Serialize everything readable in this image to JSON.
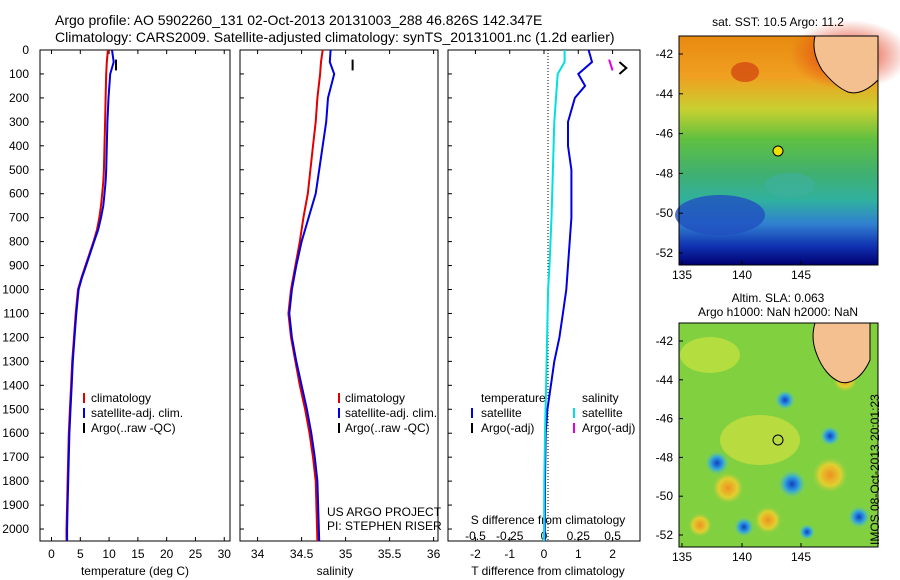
{
  "header": {
    "line1": "Argo profile: AO 5902260_131 02-Oct-2013 20131003_288 46.826S 142.347E",
    "line2": "Climatology: CARS2009. Satellite-adjusted climatology: synTS_20131001.nc (1.2d earlier)"
  },
  "colors": {
    "climatology": "#e00000",
    "satellite": "#0000e0",
    "argo": "#000000",
    "sal_satellite": "#00e0e0",
    "sal_argo": "#e000e0",
    "dotted_zero": "#000000"
  },
  "depth_axis": {
    "ticks": [
      "0",
      "100",
      "200",
      "300",
      "400",
      "500",
      "600",
      "700",
      "800",
      "900",
      "1000",
      "1100",
      "1200",
      "1300",
      "1400",
      "1500",
      "1600",
      "1700",
      "1800",
      "1900",
      "2000"
    ],
    "range": [
      0,
      2050
    ]
  },
  "temperature_panel": {
    "xlabel": "temperature (deg C)",
    "xticks": [
      "0",
      "5",
      "10",
      "15",
      "20",
      "25",
      "30"
    ],
    "xlim": [
      -2,
      31
    ],
    "legend": [
      "climatology",
      "satellite-adj. clim.",
      "Argo(..raw -QC)"
    ]
  },
  "salinity_panel": {
    "xlabel": "salinity",
    "xticks": [
      "34",
      "34.5",
      "35",
      "35.5",
      "36"
    ],
    "xlim": [
      33.8,
      36.05
    ],
    "legend": [
      "climatology",
      "satellite-adj. clim.",
      "Argo(..raw -QC)"
    ],
    "credit_line1": "US ARGO PROJECT",
    "credit_line2": "PI: STEPHEN RISER"
  },
  "difference_panel": {
    "xlabel": "T difference from climatology",
    "top_xlabel": "S difference from climatology",
    "xticks": [
      "-2",
      "-1",
      "0",
      "1",
      "2"
    ],
    "xlim": [
      -2.8,
      2.8
    ],
    "top_xticks": [
      "-0.5",
      "-0.25",
      "0",
      "0.25",
      "0.5"
    ],
    "legend_temp_title": "temperature",
    "legend_temp_items": [
      "satellite",
      "Argo(-adj)"
    ],
    "legend_sal_title": "salinity",
    "legend_sal_items": [
      "satellite",
      "Argo(-adj)"
    ]
  },
  "map_sst": {
    "title": "sat. SST: 10.5 Argo: 11.2",
    "yticks": [
      "-42",
      "-44",
      "-46",
      "-48",
      "-50",
      "-52"
    ],
    "xticks": [
      "135",
      "140",
      "145"
    ]
  },
  "map_sla": {
    "title1": "Altim. SLA: 0.063",
    "title2": "Argo h1000: NaN h2000: NaN",
    "yticks": [
      "-42",
      "-44",
      "-46",
      "-48",
      "-50",
      "-52"
    ],
    "xticks": [
      "135",
      "140",
      "145"
    ]
  },
  "stamp": "IMOS 08-Oct-2013 20:01:23",
  "chart_data": [
    {
      "type": "line",
      "panel": "temperature",
      "xlabel": "temperature (deg C)",
      "ylabel": "",
      "xlim": [
        -2,
        31
      ],
      "ylim": [
        2050,
        0
      ],
      "series": [
        {
          "name": "climatology",
          "x": [
            9.8,
            9.6,
            9.5,
            9.4,
            9.3,
            9.2,
            9.1,
            9.0,
            8.8,
            8.6,
            8.3,
            7.9,
            7.3,
            6.6,
            5.9,
            5.2,
            4.6,
            4.2,
            3.9,
            3.6,
            3.4,
            3.2,
            3.0,
            2.9,
            2.8,
            2.7,
            2.6,
            2.6
          ],
          "y": [
            0,
            50,
            100,
            200,
            300,
            400,
            500,
            550,
            600,
            650,
            700,
            750,
            800,
            850,
            900,
            950,
            1000,
            1100,
            1200,
            1300,
            1400,
            1500,
            1600,
            1700,
            1800,
            1900,
            2000,
            2050
          ]
        },
        {
          "name": "satellite-adj. clim.",
          "x": [
            10.5,
            10.8,
            10.2,
            9.9,
            9.7,
            9.6,
            9.5,
            9.4,
            9.2,
            9.0,
            8.6,
            8.1,
            7.4,
            6.7,
            6.0,
            5.3,
            4.7,
            4.3,
            4.0,
            3.7,
            3.5,
            3.3,
            3.1,
            3.0,
            2.9,
            2.8,
            2.7,
            2.7
          ],
          "y": [
            0,
            50,
            100,
            200,
            300,
            400,
            500,
            550,
            600,
            650,
            700,
            750,
            800,
            850,
            900,
            950,
            1000,
            1100,
            1200,
            1300,
            1400,
            1500,
            1600,
            1700,
            1800,
            1900,
            2000,
            2050
          ]
        },
        {
          "name": "Argo(..raw -QC)",
          "x": [
            11.2,
            11.2
          ],
          "y": [
            40,
            85
          ]
        }
      ]
    },
    {
      "type": "line",
      "panel": "salinity",
      "xlabel": "salinity",
      "ylabel": "",
      "xlim": [
        33.8,
        36.05
      ],
      "ylim": [
        2050,
        0
      ],
      "series": [
        {
          "name": "climatology",
          "x": [
            34.74,
            34.72,
            34.71,
            34.68,
            34.66,
            34.63,
            34.6,
            34.57,
            34.52,
            34.48,
            34.43,
            34.38,
            34.35,
            34.38,
            34.43,
            34.48,
            34.54,
            34.59,
            34.63,
            34.66,
            34.68
          ],
          "y": [
            0,
            50,
            100,
            200,
            300,
            400,
            500,
            600,
            700,
            800,
            900,
            1000,
            1100,
            1200,
            1300,
            1400,
            1500,
            1600,
            1700,
            1800,
            2050
          ]
        },
        {
          "name": "satellite-adj. clim.",
          "x": [
            34.83,
            34.82,
            34.87,
            34.8,
            34.78,
            34.74,
            34.7,
            34.66,
            34.58,
            34.5,
            34.44,
            34.39,
            34.36,
            34.39,
            34.44,
            34.5,
            34.56,
            34.61,
            34.65,
            34.68,
            34.7
          ],
          "y": [
            0,
            50,
            100,
            200,
            300,
            400,
            500,
            600,
            700,
            800,
            900,
            1000,
            1100,
            1200,
            1300,
            1400,
            1500,
            1600,
            1700,
            1800,
            2050
          ]
        },
        {
          "name": "Argo(..raw -QC)",
          "x": [
            35.08,
            35.08
          ],
          "y": [
            40,
            85
          ]
        }
      ]
    },
    {
      "type": "line",
      "panel": "difference",
      "xlabel": "T difference from climatology",
      "top_xlabel": "S difference from climatology",
      "xlim": [
        -2.8,
        2.8
      ],
      "ylim": [
        2050,
        0
      ],
      "series": [
        {
          "name": "temperature satellite",
          "x": [
            1.3,
            1.4,
            1.0,
            1.2,
            0.9,
            0.7,
            0.7,
            0.8,
            0.8,
            0.8,
            0.75,
            0.7,
            0.65,
            0.55,
            0.45,
            0.3,
            0.2,
            0.1,
            0.05,
            0.03,
            0.02
          ],
          "y": [
            0,
            50,
            100,
            150,
            200,
            300,
            400,
            500,
            600,
            700,
            800,
            900,
            1000,
            1100,
            1200,
            1300,
            1400,
            1500,
            1600,
            1800,
            2050
          ]
        },
        {
          "name": "temperature Argo(-adj)",
          "x": [
            2.2,
            2.4,
            2.2
          ],
          "y": [
            50,
            75,
            100
          ]
        },
        {
          "name": "salinity satellite",
          "x": [
            0.6,
            0.6,
            0.4,
            0.35,
            0.3,
            0.28,
            0.26,
            0.24,
            0.22,
            0.19,
            0.16,
            0.12,
            0.09,
            0.06,
            0.03,
            0.01,
            0.0
          ],
          "y": [
            0,
            50,
            100,
            200,
            300,
            400,
            500,
            600,
            700,
            800,
            900,
            1000,
            1200,
            1400,
            1600,
            1800,
            2050
          ]
        },
        {
          "name": "salinity Argo(-adj)",
          "x": [
            1.9,
            2.0
          ],
          "y": [
            40,
            85
          ]
        }
      ]
    }
  ]
}
